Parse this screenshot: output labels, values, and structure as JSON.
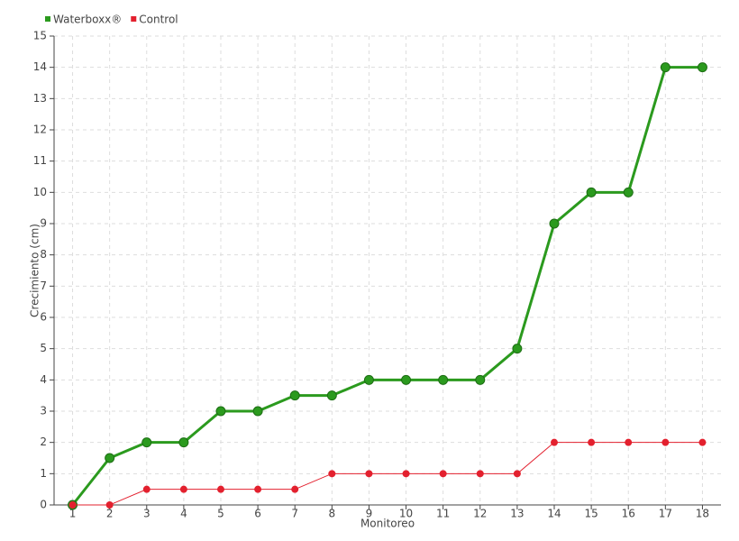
{
  "chart_data": {
    "type": "line",
    "x_label": "Monitoreo",
    "y_label": "Crecimiento (cm)",
    "categories": [
      "1",
      "2",
      "3",
      "4",
      "5",
      "6",
      "7",
      "8",
      "9",
      "10",
      "11",
      "12",
      "13",
      "14",
      "15",
      "16",
      "17",
      "18"
    ],
    "series": [
      {
        "name": "Waterboxx®",
        "color": "#2b9a1e",
        "values": [
          0,
          1.5,
          2,
          2,
          3,
          3,
          3.5,
          3.5,
          4,
          4,
          4,
          4,
          5,
          9,
          10,
          10,
          14,
          14
        ]
      },
      {
        "name": "Control",
        "color": "#e3202e",
        "values": [
          0,
          0,
          0.5,
          0.5,
          0.5,
          0.5,
          0.5,
          1,
          1,
          1,
          1,
          1,
          1,
          2,
          2,
          2,
          2,
          2
        ]
      }
    ],
    "ylim": [
      0,
      15
    ],
    "yticks": [
      0,
      1,
      2,
      3,
      4,
      5,
      6,
      7,
      8,
      9,
      10,
      11,
      12,
      13,
      14,
      15
    ],
    "grid": true,
    "legend": "top-left"
  }
}
